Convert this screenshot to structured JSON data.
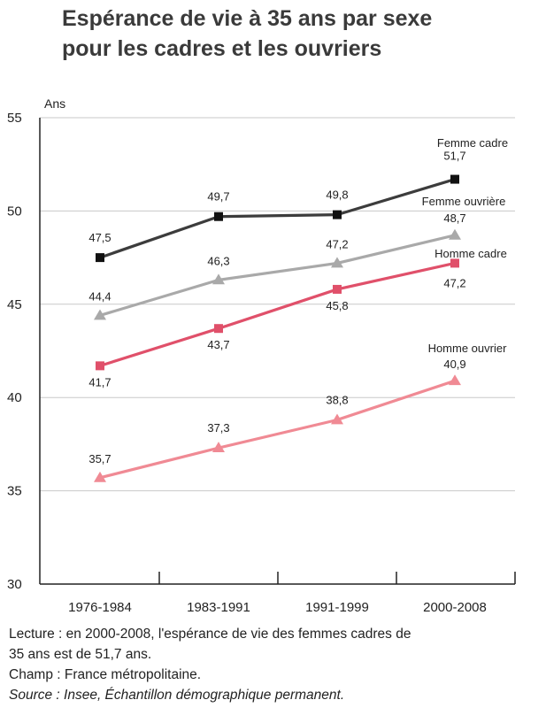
{
  "title_lines": [
    "Espérance de vie à 35 ans par sexe",
    "pour les cadres et les ouvriers"
  ],
  "notes": {
    "lecture_line1": "Lecture : en 2000-2008, l'espérance de vie des femmes cadres de",
    "lecture_line2": "35 ans est de 51,7 ans.",
    "champ": "Champ : France métropolitaine.",
    "source": "Source : Insee, Échantillon démographique permanent."
  },
  "chart_data": {
    "type": "line",
    "title": "Espérance de vie à 35 ans par sexe pour les cadres et les ouvriers",
    "ylabel": "Ans",
    "xlabel": "",
    "categories": [
      "1976-1984",
      "1983-1991",
      "1991-1999",
      "2000-2008"
    ],
    "ylim": [
      30,
      55
    ],
    "yticks": [
      30,
      35,
      40,
      45,
      50,
      55
    ],
    "grid": "horizontal",
    "legend": "labels at line ends",
    "series": [
      {
        "name": "Femme cadre",
        "values": [
          47.5,
          49.7,
          49.8,
          51.7
        ],
        "labels": [
          "47,5",
          "49,7",
          "49,8",
          "51,7"
        ],
        "color": "#3c3c3c",
        "marker": "square"
      },
      {
        "name": "Femme ouvrière",
        "values": [
          44.4,
          46.3,
          47.2,
          48.7
        ],
        "labels": [
          "44,4",
          "46,3",
          "47,2",
          "48,7"
        ],
        "color": "#a9a9a9",
        "marker": "triangle"
      },
      {
        "name": "Homme cadre",
        "values": [
          41.7,
          43.7,
          45.8,
          47.2
        ],
        "labels": [
          "41,7",
          "43,7",
          "45,8",
          "47,2"
        ],
        "color": "#e0506a",
        "marker": "square"
      },
      {
        "name": "Homme ouvrier",
        "values": [
          35.7,
          37.3,
          38.8,
          40.9
        ],
        "labels": [
          "35,7",
          "37,3",
          "38,8",
          "40,9"
        ],
        "color": "#f08a94",
        "marker": "triangle"
      }
    ]
  }
}
